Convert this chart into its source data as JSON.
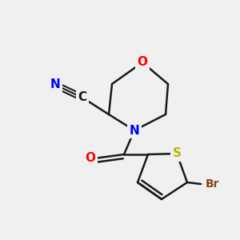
{
  "background_color": "#f0f0f0",
  "bond_color": "#1a1a1a",
  "bond_width": 1.8,
  "atom_colors": {
    "N": "#0000ff",
    "O": "#ff0000",
    "S": "#b8b800",
    "Br": "#8b4513",
    "C": "#1a1a1a"
  },
  "font_size": 11,
  "font_size_br": 10
}
